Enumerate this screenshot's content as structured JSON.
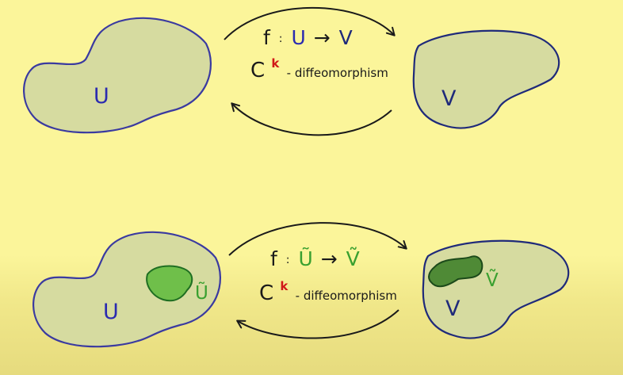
{
  "colors": {
    "background": "#fbf59a",
    "region_fill": "#d6dba0",
    "region_stroke": "#3a3aa0",
    "subset_fill": "#6fbf4a",
    "subset_stroke": "#1f6e22",
    "subset_dark_fill": "#4f8a36",
    "subset_dark_stroke": "#1c4a1a",
    "ink": "#1a1a1a",
    "blue": "#2b2bb0",
    "green": "#3aa030",
    "red": "#d01818"
  },
  "top": {
    "domain_label": "U",
    "codomain_label": "V",
    "map": {
      "f": "f",
      "colon": ":",
      "from": "U",
      "arrow": "→",
      "to": "V"
    },
    "regularity": {
      "C": "C",
      "k": "k",
      "rest": "- diffeomorphism"
    }
  },
  "bottom": {
    "domain_label": "U",
    "subset_label": "Ũ",
    "codomain_label": "V",
    "image_label": "Ṽ",
    "map": {
      "f": "f",
      "colon": ":",
      "from": "Ũ",
      "arrow": "→",
      "to": "Ṽ"
    },
    "regularity": {
      "C": "C",
      "k": "k",
      "rest": "- diffeomorphism"
    }
  }
}
